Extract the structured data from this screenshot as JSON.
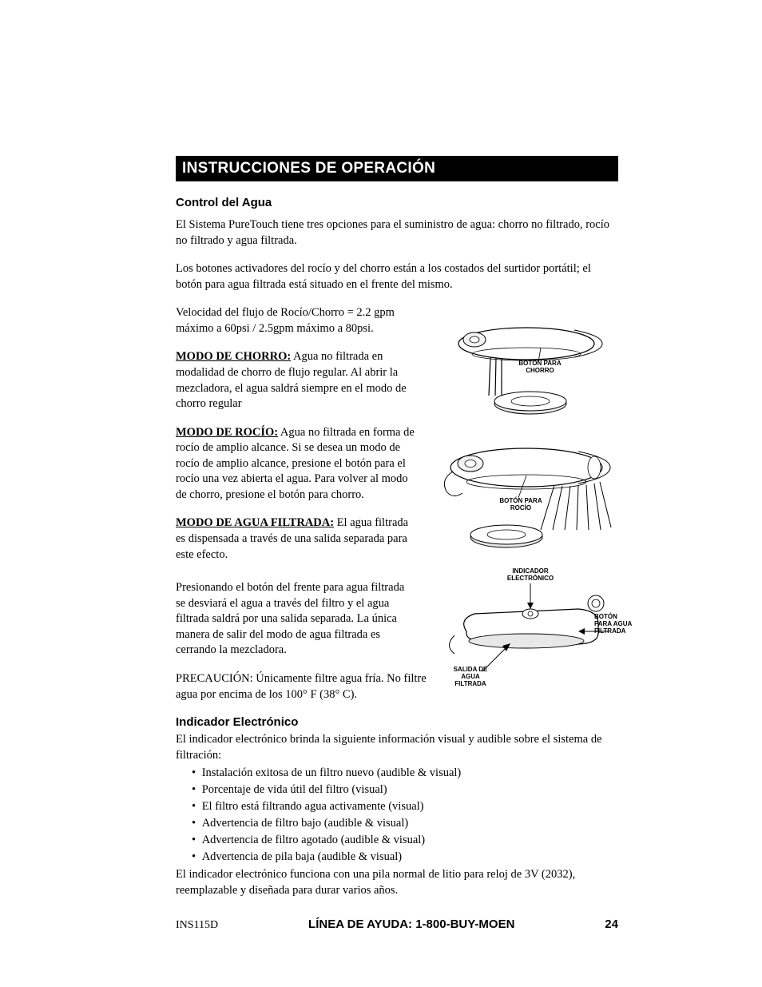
{
  "banner": "INSTRUCCIONES DE OPERACIÓN",
  "section1": {
    "heading": "Control del Agua",
    "p1": "El Sistema PureTouch tiene tres opciones para el suministro de agua: chorro no filtrado, rocío no filtrado y agua filtrada.",
    "p2": "Los botones activadores del rocío y del chorro están a los costados del surtidor portátil;  el botón para agua filtrada está situado en el frente del mismo.",
    "p3": "Velocidad del flujo de Rocío/Chorro = 2.2 gpm máximo a 60psi / 2.5gpm máximo a 80psi.",
    "mode_chorro_label": "MODO DE CHORRO:",
    "mode_chorro_text": " Agua no filtrada en modalidad de chorro de flujo regular. Al abrir la mezcladora, el agua saldrá siempre en el modo de chorro regular",
    "mode_rocio_label": "MODO DE ROCÍO:",
    "mode_rocio_text": "  Agua no filtrada en forma de rocío de amplio alcance. Si se desea un modo de rocío de amplio alcance, presione el botón para el rocío una vez abierta el agua. Para volver al modo de chorro, presione el botón para chorro.",
    "mode_filt_label": "MODO DE AGUA FILTRADA:",
    "mode_filt_text": "  El agua filtrada es dispensada a través de una salida separada para este efecto.",
    "p_filt2": "Presionando el botón del frente para agua filtrada se desviará el agua a través del filtro y el agua filtrada saldrá por una salida separada. La única manera de salir del modo de agua filtrada es cerrando la mezcladora.",
    "p_caution": "PRECAUCIÓN:  Únicamente filtre agua fría.  No filtre agua por encima de los 100° F (38° C)."
  },
  "section2": {
    "heading": "Indicador Electrónico",
    "intro": "El indicador electrónico brinda la siguiente información visual y audible sobre el sistema de filtración:",
    "bullets": [
      "Instalación exitosa de un filtro nuevo (audible & visual)",
      "Porcentaje de vida útil del filtro (visual)",
      "El filtro está filtrando agua activamente (visual)",
      "Advertencia de filtro bajo (audible & visual)",
      "Advertencia de filtro agotado (audible & visual)",
      "Advertencia de pila baja (audible & visual)"
    ],
    "outro": "El indicador electrónico funciona con una pila normal de litio para reloj de 3V (2032), reemplazable y diseñada para durar varios años."
  },
  "diagram": {
    "label_chorro": "BOTÓN PARA CHORRO",
    "label_rocio": "BOTÓN PARA ROCÍO",
    "label_indicador": "INDICADOR ELECTRÓNICO",
    "label_boton_filtrada": "BOTÓN PARA AGUA FILTRADA",
    "label_salida": "SALIDA DE AGUA FILTRADA",
    "stroke": "#000000",
    "fill_body": "#ffffff",
    "fill_shade": "#e8e8e8"
  },
  "footer": {
    "docid": "INS115D",
    "helpline": "LÍNEA DE AYUDA:  1-800-BUY-MOEN",
    "page": "24"
  }
}
